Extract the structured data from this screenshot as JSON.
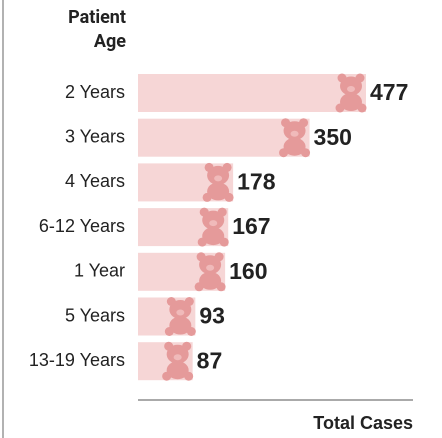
{
  "chart_data": {
    "type": "bar",
    "orientation": "horizontal",
    "y_label": "Patient Age",
    "x_label": "Total Cases",
    "categories": [
      "2 Years",
      "3 Years",
      "4 Years",
      "6-12 Years",
      "1 Year",
      "5 Years",
      "13-19 Years"
    ],
    "values": [
      477,
      350,
      178,
      167,
      160,
      93,
      87
    ],
    "color": "#f6d6d6",
    "icon_color": "#e59a9a"
  }
}
